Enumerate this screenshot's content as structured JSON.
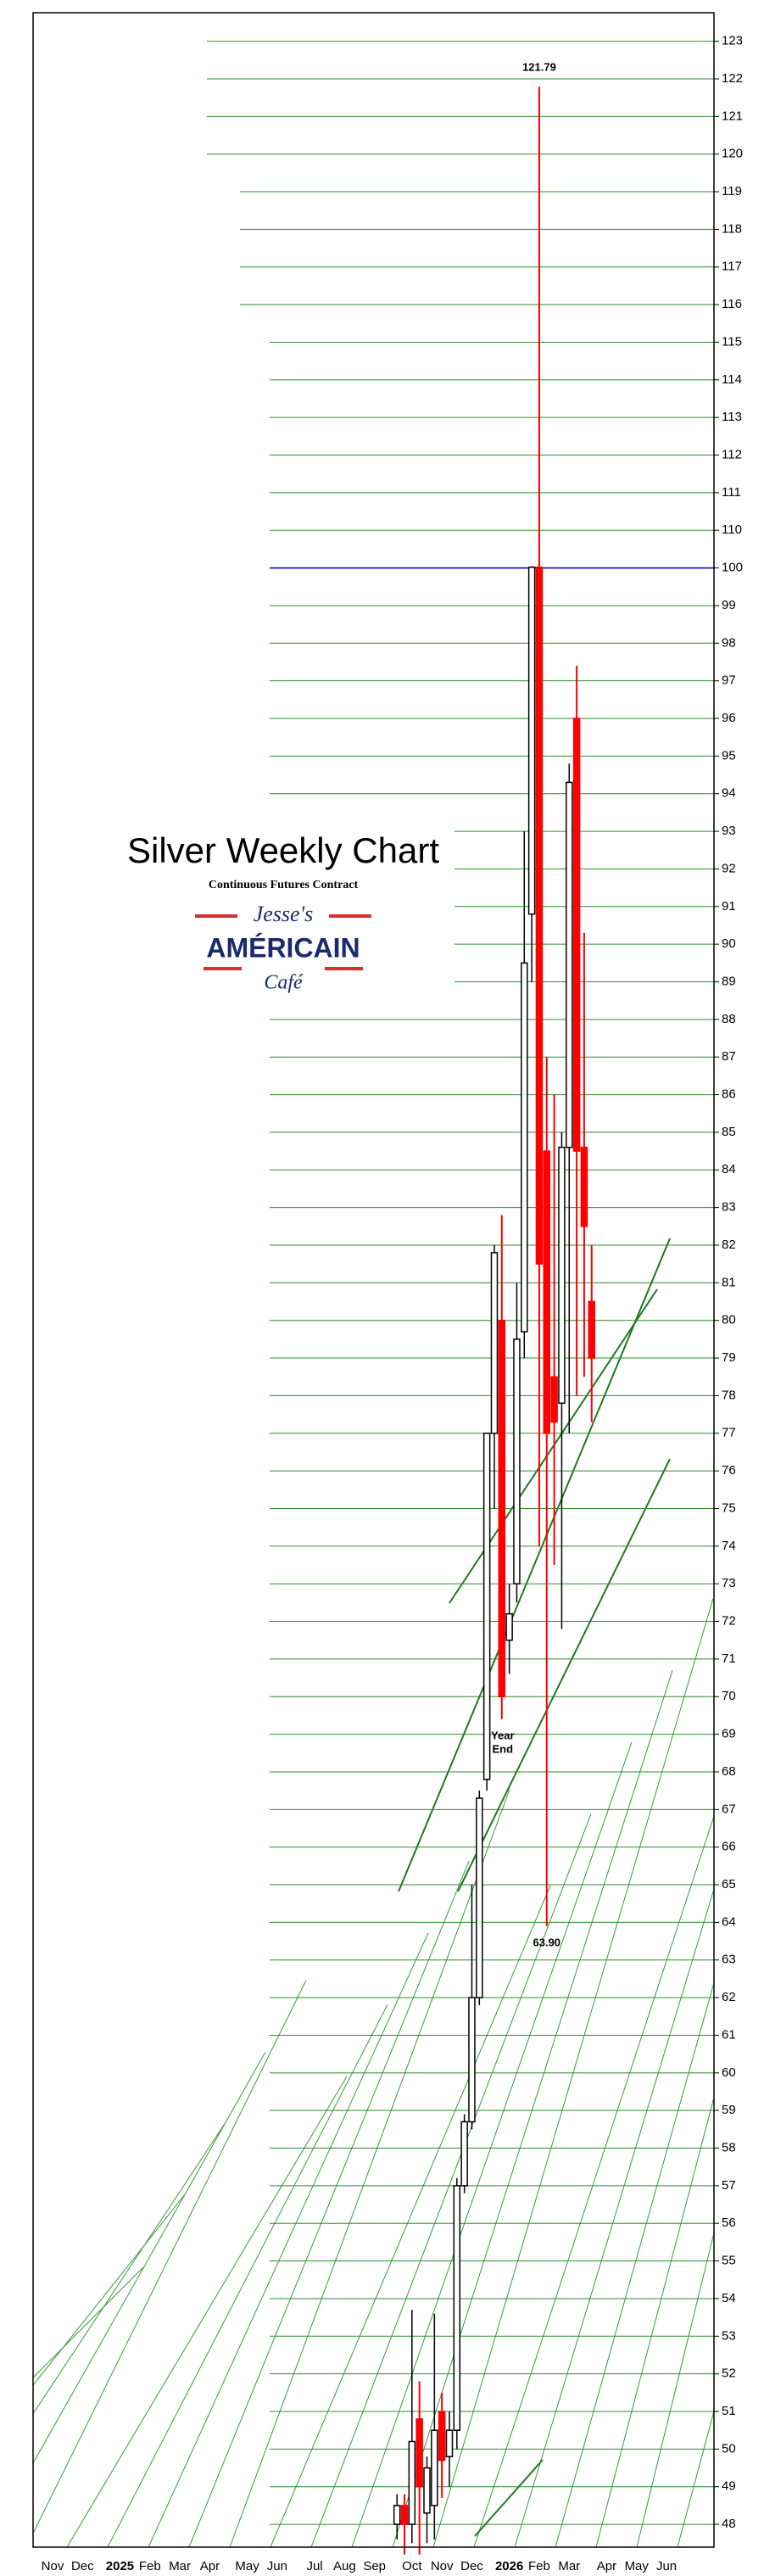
{
  "chart_data": {
    "type": "candlestick",
    "title": "Silver Weekly Chart",
    "subtitle": "Continuous Futures Contract",
    "logo": {
      "top": "Jesse's",
      "middle": "AMÉRICAIN",
      "bottom": "Café"
    },
    "categories": [
      "Nov",
      null,
      null,
      null,
      "Dec",
      null,
      null,
      null,
      null,
      "2025",
      null,
      null,
      null,
      "Feb",
      null,
      null,
      null,
      "Mar",
      null,
      null,
      null,
      "Apr",
      null,
      null,
      null,
      null,
      "May",
      null,
      null,
      null,
      "Jun",
      null,
      null,
      null,
      null,
      "Jul",
      null,
      null,
      null,
      "Aug",
      null,
      null,
      null,
      "Sep",
      null,
      null,
      null,
      null,
      "Oct",
      null,
      null,
      null,
      "Nov",
      null,
      null,
      null,
      "Dec",
      null,
      null,
      null,
      null,
      "2026",
      null,
      null,
      null,
      "Feb",
      null,
      null,
      null,
      "Mar",
      null,
      null,
      null,
      null,
      "Apr",
      null,
      null,
      null,
      "May",
      null,
      null,
      null,
      "Jun",
      null,
      null,
      null
    ],
    "open": [
      null,
      null,
      null,
      null,
      null,
      null,
      null,
      null,
      null,
      null,
      null,
      null,
      null,
      null,
      null,
      null,
      null,
      null,
      null,
      null,
      null,
      null,
      null,
      null,
      null,
      null,
      null,
      null,
      null,
      null,
      null,
      null,
      null,
      null,
      null,
      null,
      null,
      null,
      null,
      null,
      null,
      null,
      null,
      null,
      null,
      null,
      48,
      48.5,
      48,
      50.8,
      48.3,
      48.5,
      51,
      49.8,
      50.5,
      57,
      58.7,
      62,
      67.8,
      77,
      80,
      71.5,
      73,
      79.7,
      90.8,
      100.2,
      84.5,
      78.5,
      77.8,
      84.6,
      96,
      84.6,
      80.5,
      null,
      null,
      null,
      null,
      null,
      null,
      null,
      null,
      null,
      null,
      null,
      null,
      null
    ],
    "high": [
      null,
      null,
      null,
      null,
      null,
      null,
      null,
      null,
      null,
      null,
      null,
      null,
      null,
      null,
      null,
      null,
      null,
      null,
      null,
      null,
      null,
      null,
      null,
      null,
      null,
      null,
      null,
      null,
      null,
      null,
      null,
      null,
      null,
      null,
      null,
      null,
      null,
      null,
      null,
      null,
      null,
      null,
      null,
      null,
      null,
      null,
      48.8,
      48.8,
      53.7,
      51.8,
      49.8,
      53.6,
      51.5,
      51,
      57.2,
      58.9,
      65,
      67.5,
      77,
      82,
      82.8,
      73,
      81,
      93,
      100.5,
      121.79,
      87,
      86,
      85,
      94.8,
      97.4,
      90.3,
      82,
      null,
      null,
      null,
      null,
      null,
      null,
      null,
      null,
      null,
      null,
      null,
      null,
      null
    ],
    "low": [
      null,
      null,
      null,
      null,
      null,
      null,
      null,
      null,
      null,
      null,
      null,
      null,
      null,
      null,
      null,
      null,
      null,
      null,
      null,
      null,
      null,
      null,
      null,
      null,
      null,
      null,
      null,
      null,
      null,
      null,
      null,
      null,
      null,
      null,
      null,
      null,
      null,
      null,
      null,
      null,
      null,
      null,
      null,
      null,
      null,
      null,
      47.6,
      47.2,
      47.5,
      47.2,
      47.5,
      47.6,
      48.7,
      49,
      50,
      56.8,
      58.5,
      61.8,
      67.5,
      75,
      69.4,
      70.6,
      72.5,
      79,
      89,
      74,
      63.9,
      73.5,
      71.8,
      77,
      78,
      78.5,
      77.3,
      null,
      null,
      null,
      null,
      null,
      null,
      null,
      null,
      null,
      null,
      null,
      null,
      null
    ],
    "close": [
      null,
      null,
      null,
      null,
      null,
      null,
      null,
      null,
      null,
      null,
      null,
      null,
      null,
      null,
      null,
      null,
      null,
      null,
      null,
      null,
      null,
      null,
      null,
      null,
      null,
      null,
      null,
      null,
      null,
      null,
      null,
      null,
      null,
      null,
      null,
      null,
      null,
      null,
      null,
      null,
      null,
      null,
      null,
      null,
      null,
      null,
      48.5,
      48,
      50.2,
      49,
      49.5,
      50.5,
      49.7,
      50.5,
      57,
      58.7,
      62,
      67.3,
      77,
      81.8,
      70,
      72.2,
      79.5,
      89.5,
      100.2,
      81.5,
      77,
      77.3,
      84.6,
      94.3,
      84.5,
      82.5,
      79,
      null,
      null,
      null,
      null,
      null,
      null,
      null,
      null,
      null,
      null,
      null,
      null,
      null
    ],
    "up_color": "#000000",
    "down_color": "#ff0000",
    "ylim": [
      47.1,
      123.6
    ],
    "y_break": [
      100,
      110
    ],
    "yticks": [
      48,
      49,
      50,
      51,
      52,
      53,
      54,
      55,
      56,
      57,
      58,
      59,
      60,
      61,
      62,
      63,
      64,
      65,
      66,
      67,
      68,
      69,
      70,
      71,
      72,
      73,
      74,
      75,
      76,
      77,
      78,
      79,
      80,
      81,
      82,
      83,
      84,
      85,
      86,
      87,
      88,
      89,
      90,
      91,
      92,
      93,
      94,
      95,
      96,
      97,
      98,
      99,
      100,
      110,
      111,
      112,
      113,
      114,
      115,
      116,
      117,
      118,
      119,
      120,
      121,
      122,
      123
    ],
    "grid": true,
    "grid_color": "#2e8b2e",
    "highlight_line": {
      "value": 100,
      "color": "#0000aa"
    },
    "annotations": [
      {
        "text": "121.79",
        "x": 65,
        "y": 121.79
      },
      {
        "text": "63.90",
        "x": 66,
        "y": 63.9
      },
      {
        "text": "Year",
        "x": 60,
        "y": 69.4
      },
      {
        "text": "End",
        "x": 60,
        "y": 69.4
      }
    ]
  }
}
